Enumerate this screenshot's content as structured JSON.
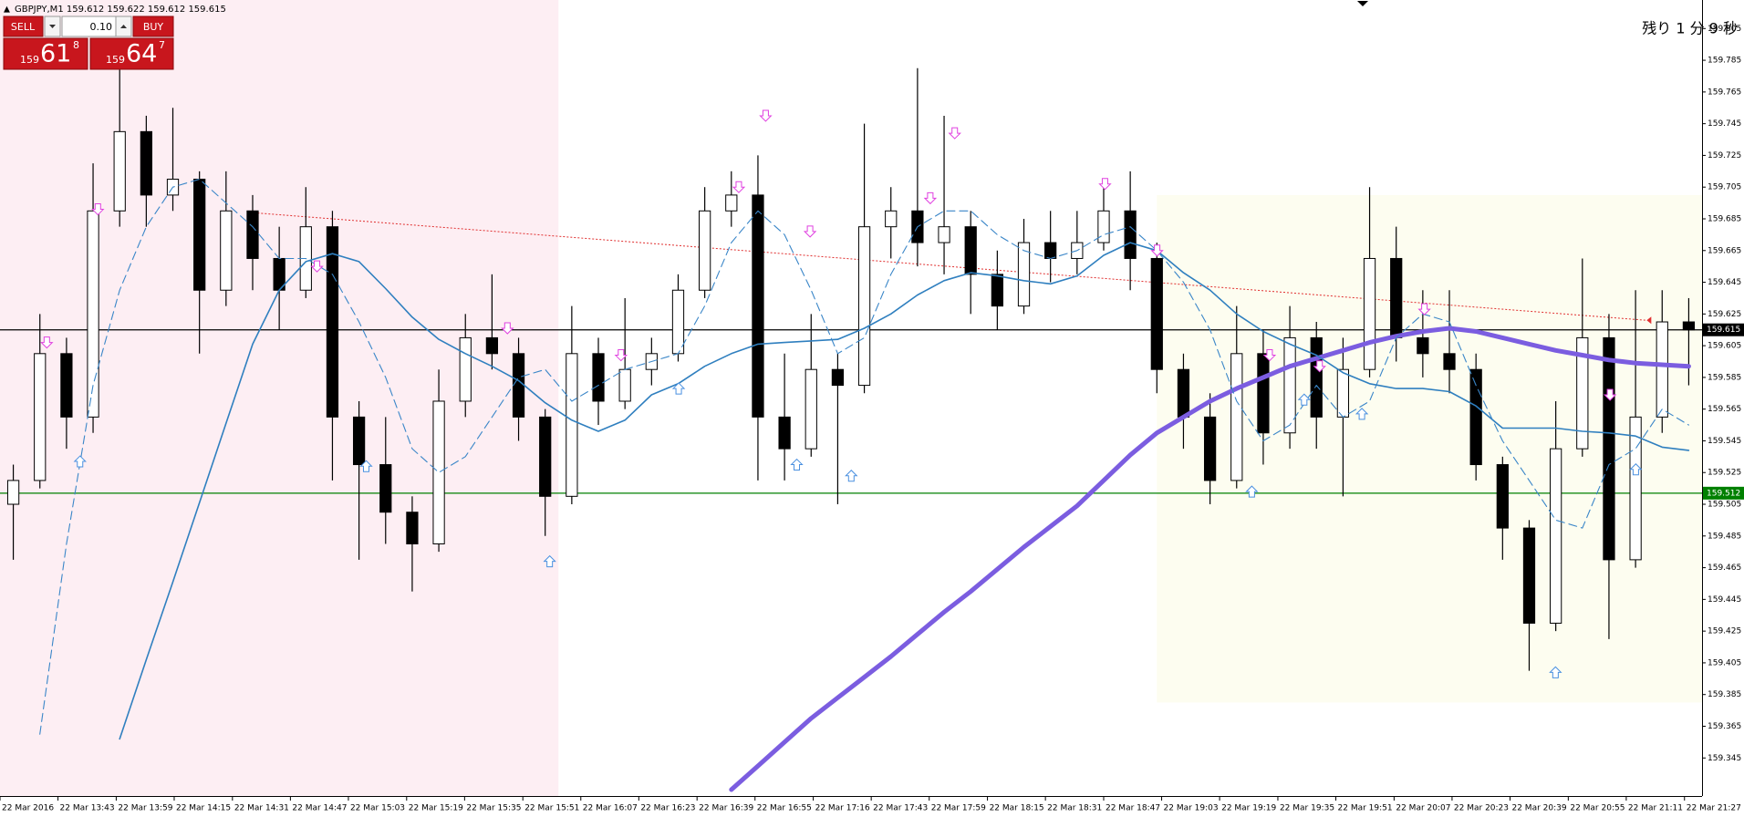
{
  "header": {
    "symbol_info": "GBPJPY,M1  159.612 159.622 159.612 159.615"
  },
  "trade_panel": {
    "sell": "SELL",
    "buy": "BUY",
    "lot": "0.10",
    "sell_price": {
      "big": "159",
      "main": "61",
      "pip": "8"
    },
    "buy_price": {
      "big": "159",
      "main": "64",
      "pip": "7"
    }
  },
  "countdown": "残り 1 分 9 秒",
  "chart_data": {
    "type": "candlestick",
    "x": [
      0.5,
      1.5,
      2.5,
      3.5,
      4.5,
      5.5,
      6.5,
      7.5,
      8.5,
      9.5,
      10.5,
      11.5,
      12.5,
      13.5,
      14.5,
      15.5,
      16.5,
      17.5,
      18.5,
      19.5,
      20.5,
      21.5,
      22.5,
      23.5,
      24.5,
      25.5,
      26.5,
      27.5,
      28.5,
      29.5,
      30.5,
      31.5,
      32.5,
      33.5,
      34.5,
      35.5,
      36.5,
      37.5,
      38.5,
      39.5,
      40.5,
      41.5,
      42.5,
      43.5,
      44.5,
      45.5,
      46.5,
      47.5,
      48.5,
      49.5,
      50.5,
      51.5,
      52.5,
      53.5,
      54.5,
      55.5,
      56.5,
      57.5,
      58.5,
      59.5,
      60.5,
      61.5,
      62.5,
      63.5
    ],
    "open": [
      159.505,
      159.52,
      159.6,
      159.56,
      159.69,
      159.74,
      159.7,
      159.71,
      159.64,
      159.69,
      159.66,
      159.64,
      159.68,
      159.56,
      159.53,
      159.5,
      159.48,
      159.57,
      159.61,
      159.6,
      159.56,
      159.51,
      159.6,
      159.57,
      159.59,
      159.6,
      159.64,
      159.69,
      159.7,
      159.56,
      159.54,
      159.59,
      159.58,
      159.68,
      159.69,
      159.67,
      159.68,
      159.65,
      159.63,
      159.67,
      159.66,
      159.67,
      159.69,
      159.66,
      159.59,
      159.56,
      159.52,
      159.6,
      159.55,
      159.61,
      159.56,
      159.59,
      159.66,
      159.61,
      159.6,
      159.59,
      159.53,
      159.49,
      159.43,
      159.54,
      159.61,
      159.47,
      159.56,
      159.62
    ],
    "high": [
      159.53,
      159.625,
      159.61,
      159.72,
      159.78,
      159.75,
      159.755,
      159.715,
      159.715,
      159.7,
      159.68,
      159.705,
      159.69,
      159.57,
      159.56,
      159.51,
      159.59,
      159.625,
      159.65,
      159.61,
      159.565,
      159.63,
      159.61,
      159.635,
      159.61,
      159.65,
      159.705,
      159.715,
      159.725,
      159.6,
      159.625,
      159.6,
      159.745,
      159.705,
      159.78,
      159.75,
      159.69,
      159.665,
      159.685,
      159.69,
      159.69,
      159.71,
      159.715,
      159.67,
      159.6,
      159.575,
      159.63,
      159.615,
      159.63,
      159.62,
      159.61,
      159.705,
      159.68,
      159.64,
      159.64,
      159.6,
      159.535,
      159.495,
      159.57,
      159.66,
      159.625,
      159.64,
      159.64,
      159.635
    ],
    "low": [
      159.47,
      159.515,
      159.54,
      159.55,
      159.68,
      159.68,
      159.69,
      159.6,
      159.63,
      159.64,
      159.615,
      159.635,
      159.52,
      159.47,
      159.48,
      159.45,
      159.475,
      159.56,
      159.59,
      159.545,
      159.485,
      159.505,
      159.555,
      159.565,
      159.58,
      159.595,
      159.635,
      159.68,
      159.52,
      159.52,
      159.535,
      159.505,
      159.575,
      159.66,
      159.655,
      159.65,
      159.625,
      159.615,
      159.625,
      159.645,
      159.65,
      159.665,
      159.64,
      159.575,
      159.54,
      159.505,
      159.515,
      159.53,
      159.54,
      159.54,
      159.51,
      159.585,
      159.595,
      159.585,
      159.575,
      159.52,
      159.47,
      159.4,
      159.425,
      159.535,
      159.42,
      159.465,
      159.55,
      159.58
    ],
    "close": [
      159.52,
      159.6,
      159.56,
      159.69,
      159.74,
      159.7,
      159.71,
      159.64,
      159.69,
      159.66,
      159.64,
      159.68,
      159.56,
      159.53,
      159.5,
      159.48,
      159.57,
      159.61,
      159.6,
      159.56,
      159.51,
      159.6,
      159.57,
      159.59,
      159.6,
      159.64,
      159.69,
      159.7,
      159.56,
      159.54,
      159.59,
      159.58,
      159.68,
      159.69,
      159.67,
      159.68,
      159.65,
      159.63,
      159.67,
      159.66,
      159.67,
      159.69,
      159.66,
      159.59,
      159.56,
      159.52,
      159.6,
      159.55,
      159.61,
      159.56,
      159.59,
      159.66,
      159.61,
      159.6,
      159.59,
      159.53,
      159.49,
      159.43,
      159.54,
      159.61,
      159.47,
      159.56,
      159.62,
      159.615
    ],
    "up_color": "#ffffff",
    "down_color": "#000000",
    "wick_color": "#000000",
    "series": [
      {
        "color": "#7b5de0",
        "width": 5,
        "dashed": false,
        "values": [
          null,
          null,
          null,
          null,
          null,
          null,
          null,
          null,
          null,
          null,
          null,
          null,
          null,
          null,
          null,
          null,
          null,
          null,
          null,
          null,
          null,
          null,
          null,
          null,
          null,
          null,
          null,
          159.325,
          159.34,
          159.355,
          159.37,
          159.383,
          159.396,
          159.409,
          159.423,
          159.437,
          159.45,
          159.464,
          159.478,
          159.491,
          159.504,
          159.52,
          159.536,
          159.55,
          159.56,
          159.57,
          159.578,
          159.585,
          159.592,
          159.597,
          159.602,
          159.607,
          159.611,
          159.614,
          159.616,
          159.614,
          159.61,
          159.606,
          159.602,
          159.599,
          159.596,
          159.594,
          159.593,
          159.592
        ]
      },
      {
        "color": "#2f7fbf",
        "width": 1.6,
        "dashed": false,
        "values": [
          null,
          null,
          null,
          null,
          159.357,
          159.407,
          159.456,
          159.506,
          159.556,
          159.606,
          159.64,
          159.658,
          159.663,
          159.658,
          159.641,
          159.623,
          159.609,
          159.6,
          159.592,
          159.583,
          159.569,
          159.558,
          159.551,
          159.558,
          159.574,
          159.581,
          159.592,
          159.6,
          159.606,
          159.607,
          159.608,
          159.609,
          159.616,
          159.625,
          159.637,
          159.646,
          159.651,
          159.649,
          159.646,
          159.644,
          159.649,
          159.662,
          159.67,
          159.665,
          159.651,
          159.64,
          159.625,
          159.614,
          159.606,
          159.599,
          159.588,
          159.581,
          159.578,
          159.578,
          159.576,
          159.567,
          159.553,
          159.553,
          159.553,
          159.551,
          159.55,
          159.548,
          159.541,
          159.539
        ]
      },
      {
        "color": "#3a86c8",
        "width": 1.1,
        "dashed": true,
        "values": [
          null,
          159.36,
          159.48,
          159.58,
          159.64,
          159.68,
          159.705,
          159.71,
          159.695,
          159.68,
          159.66,
          159.66,
          159.65,
          159.62,
          159.585,
          159.54,
          159.525,
          159.535,
          159.56,
          159.585,
          159.59,
          159.57,
          159.58,
          159.59,
          159.595,
          159.6,
          159.63,
          159.67,
          159.69,
          159.675,
          159.64,
          159.6,
          159.61,
          159.65,
          159.68,
          159.69,
          159.69,
          159.675,
          159.665,
          159.66,
          159.665,
          159.675,
          159.68,
          159.665,
          159.645,
          159.615,
          159.57,
          159.545,
          159.555,
          159.58,
          159.56,
          159.57,
          159.61,
          159.625,
          159.62,
          159.58,
          159.545,
          159.52,
          159.495,
          159.49,
          159.53,
          159.54,
          159.565,
          159.555
        ]
      }
    ],
    "hlines": [
      {
        "value": 159.615,
        "color": "#000000"
      },
      {
        "value": 159.512,
        "color": "#008000"
      }
    ],
    "trendline": {
      "x": [
        9.41,
        61.92
      ],
      "y": [
        159.689,
        159.621
      ],
      "color": "#e03030"
    },
    "zones": [
      {
        "x0": 0,
        "x1": 21.0,
        "color": "#fdeef3"
      },
      {
        "x0": 43.5,
        "x1": 64,
        "y0": 159.38,
        "y1": 159.7,
        "color": "#fdfdf0"
      }
    ],
    "signals": [
      {
        "direction": "down",
        "color": "#e040e0",
        "x": [
          3.68,
          1.76,
          11.92,
          19.08,
          23.35,
          28.79,
          27.78,
          30.46,
          34.98,
          35.9,
          41.55,
          43.51,
          47.74,
          49.62,
          53.56,
          60.54
        ],
        "y": [
          159.691,
          159.607,
          159.655,
          159.616,
          159.599,
          159.75,
          159.705,
          159.677,
          159.698,
          159.739,
          159.707,
          159.665,
          159.599,
          159.592,
          159.628,
          159.574
        ]
      },
      {
        "direction": "up",
        "color": "#4a90e0",
        "x": [
          3.01,
          13.77,
          20.67,
          25.52,
          29.96,
          32.01,
          47.07,
          49.04,
          51.21,
          58.49,
          61.51
        ],
        "y": [
          159.532,
          159.529,
          159.469,
          159.578,
          159.53,
          159.523,
          159.513,
          159.571,
          159.562,
          159.399,
          159.527
        ]
      }
    ],
    "xlim": [
      0,
      64
    ],
    "ylim": [
      159.321,
      159.823
    ],
    "yticks": [
      159.345,
      159.365,
      159.385,
      159.405,
      159.425,
      159.445,
      159.465,
      159.485,
      159.505,
      159.525,
      159.545,
      159.565,
      159.585,
      159.605,
      159.625,
      159.645,
      159.665,
      159.685,
      159.705,
      159.725,
      159.745,
      159.765,
      159.785,
      159.805
    ],
    "xticks": [
      {
        "value": 0,
        "label": "22 Mar 2016"
      },
      {
        "value": 2.18,
        "label": "22 Mar 13:43"
      },
      {
        "value": 4.37,
        "label": "22 Mar 13:59"
      },
      {
        "value": 6.55,
        "label": "22 Mar 14:15"
      },
      {
        "value": 8.74,
        "label": "22 Mar 14:31"
      },
      {
        "value": 10.92,
        "label": "22 Mar 14:47"
      },
      {
        "value": 13.1,
        "label": "22 Mar 15:03"
      },
      {
        "value": 15.29,
        "label": "22 Mar 15:19"
      },
      {
        "value": 17.47,
        "label": "22 Mar 15:35"
      },
      {
        "value": 19.66,
        "label": "22 Mar 15:51"
      },
      {
        "value": 21.84,
        "label": "22 Mar 16:07"
      },
      {
        "value": 24.02,
        "label": "22 Mar 16:23"
      },
      {
        "value": 26.21,
        "label": "22 Mar 16:39"
      },
      {
        "value": 28.39,
        "label": "22 Mar 16:55"
      },
      {
        "value": 30.58,
        "label": "22 Mar 17:16"
      },
      {
        "value": 32.76,
        "label": "22 Mar 17:43"
      },
      {
        "value": 34.94,
        "label": "22 Mar 17:59"
      },
      {
        "value": 37.13,
        "label": "22 Mar 18:15"
      },
      {
        "value": 39.31,
        "label": "22 Mar 18:31"
      },
      {
        "value": 41.5,
        "label": "22 Mar 18:47"
      },
      {
        "value": 43.68,
        "label": "22 Mar 19:03"
      },
      {
        "value": 45.86,
        "label": "22 Mar 19:19"
      },
      {
        "value": 48.05,
        "label": "22 Mar 19:35"
      },
      {
        "value": 50.23,
        "label": "22 Mar 19:51"
      },
      {
        "value": 52.42,
        "label": "22 Mar 20:07"
      },
      {
        "value": 54.6,
        "label": "22 Mar 20:23"
      },
      {
        "value": 56.78,
        "label": "22 Mar 20:39"
      },
      {
        "value": 58.97,
        "label": "22 Mar 20:55"
      },
      {
        "value": 61.15,
        "label": "22 Mar 21:11"
      },
      {
        "value": 63.34,
        "label": "22 Mar 21:27"
      }
    ]
  }
}
